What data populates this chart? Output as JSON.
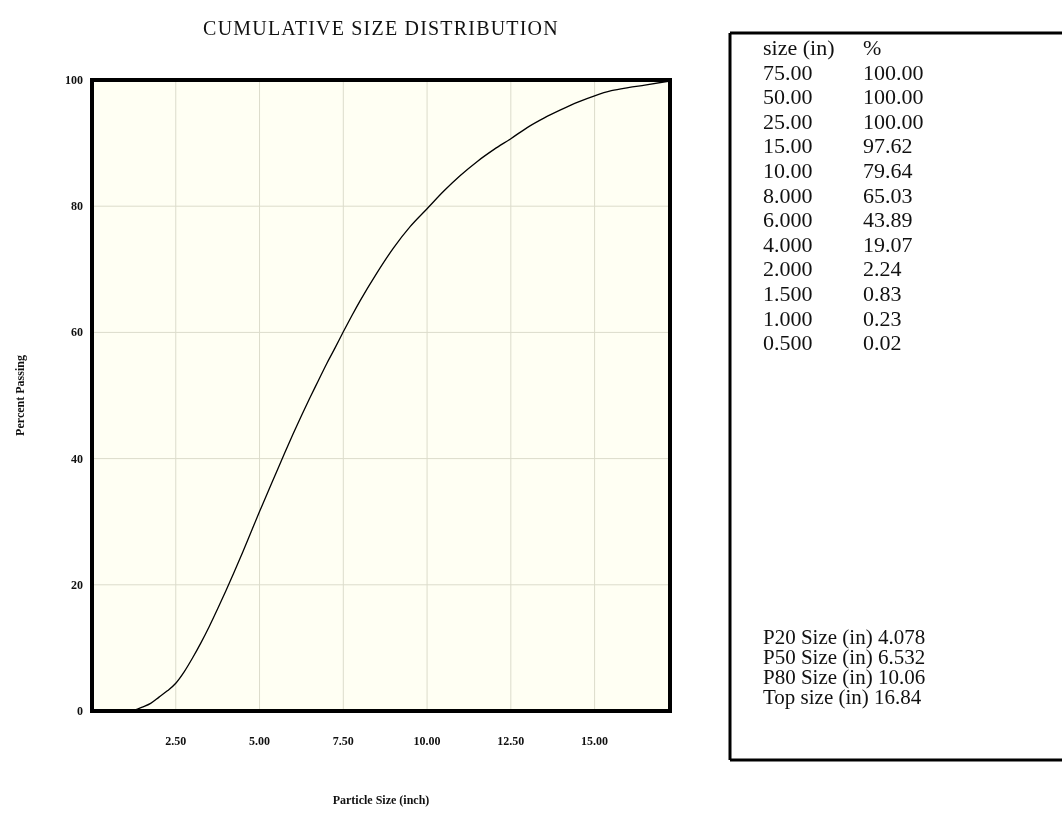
{
  "chart_data": [
    {
      "type": "line",
      "title": "CUMULATIVE SIZE DISTRIBUTION",
      "xlabel": "Particle Size (inch)",
      "ylabel": "Percent Passing",
      "x": [
        1.2,
        1.5,
        1.75,
        2.0,
        2.25,
        2.5,
        2.75,
        3.0,
        3.25,
        3.5,
        3.75,
        4.0,
        4.25,
        4.5,
        4.75,
        5.0,
        5.25,
        5.5,
        5.75,
        6.0,
        6.25,
        6.5,
        6.75,
        7.0,
        7.25,
        7.5,
        7.75,
        8.0,
        8.5,
        9.0,
        9.5,
        10.0,
        10.5,
        11.0,
        11.5,
        12.0,
        12.5,
        13.0,
        13.5,
        14.0,
        14.5,
        15.0,
        15.5,
        16.0,
        16.5,
        17.2
      ],
      "series": [
        {
          "color": "#000000",
          "values": [
            0,
            0.6,
            1.2,
            2.2,
            3.2,
            4.4,
            6.2,
            8.4,
            10.8,
            13.4,
            16.2,
            19.1,
            22.1,
            25.2,
            28.4,
            31.6,
            34.7,
            37.8,
            40.9,
            43.9,
            46.8,
            49.6,
            52.3,
            55.0,
            57.5,
            60.1,
            62.6,
            65.0,
            69.4,
            73.4,
            76.8,
            79.6,
            82.4,
            84.9,
            87.1,
            89.0,
            90.7,
            92.5,
            94.0,
            95.3,
            96.5,
            97.5,
            98.3,
            98.8,
            99.2,
            99.8
          ]
        }
      ],
      "xlim": [
        0,
        17.25
      ],
      "ylim": [
        0,
        100
      ],
      "xticks": [
        {
          "value": 2.5,
          "label": "2.50"
        },
        {
          "value": 5,
          "label": "5.00"
        },
        {
          "value": 7.5,
          "label": "7.50"
        },
        {
          "value": 10,
          "label": "10.00"
        },
        {
          "value": 12.5,
          "label": "12.50"
        },
        {
          "value": 15,
          "label": "15.00"
        }
      ],
      "yticks": [
        0,
        20,
        40,
        60,
        80,
        100
      ],
      "grid": true,
      "annotations": [
        "P20 Size (in) 4.078",
        "P50 Size (in) 6.532",
        "P80 Size (in) 10.06",
        "Top size (in) 16.84"
      ]
    },
    {
      "type": "other",
      "annotations": [
        "size (in)",
        "%",
        "75.00",
        "100.00",
        "50.00",
        "100.00",
        "25.00",
        "100.00",
        "15.00",
        "97.62",
        "10.00",
        "79.64",
        "8.000",
        "65.03",
        "6.000",
        "43.89",
        "4.000",
        "19.07",
        "2.000",
        "2.24",
        "1.500",
        "0.83",
        "1.000",
        "0.23",
        "0.500",
        "0.02"
      ]
    }
  ]
}
